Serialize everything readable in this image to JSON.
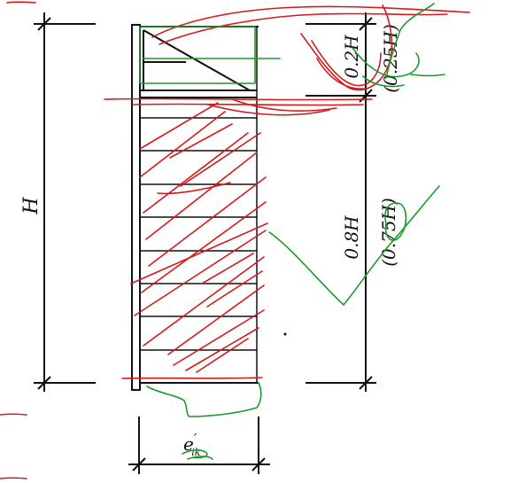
{
  "dimensions": {
    "total_height_label": "H",
    "top_zone_label": "0.2H",
    "top_zone_alt_label": "(0.25H)",
    "bottom_zone_label": "0.8H",
    "bottom_zone_alt_label": "(0.75H)",
    "width_label": "e",
    "width_label_prime": "′",
    "width_label_subscript": "ik"
  },
  "colors": {
    "ink": "#111111",
    "red_markup": "#d41a1a",
    "green_markup": "#1b9a2a"
  }
}
